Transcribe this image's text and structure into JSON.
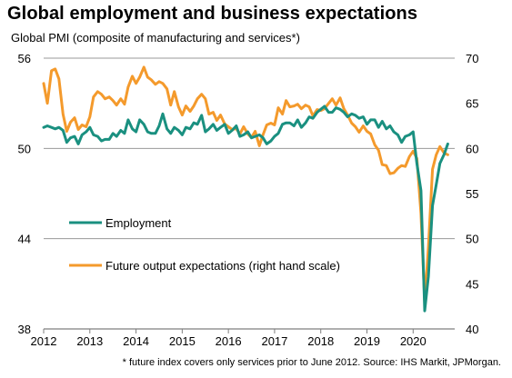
{
  "title": "Global employment and business expectations",
  "subtitle": "Global PMI (composite of manufacturing and services*)",
  "footnote": "* future index covers only services prior to June 2012. Source: IHS Markit, JPMorgan.",
  "chart_data": {
    "type": "line",
    "grid": "horizontal",
    "legend_position": "left, inside plot",
    "x_ticks": [
      "2012",
      "2013",
      "2014",
      "2015",
      "2016",
      "2017",
      "2018",
      "2019",
      "2020"
    ],
    "xlim": [
      2012.0,
      2020.9
    ],
    "y_left": {
      "ticks": [
        38,
        44,
        50,
        56
      ],
      "ylim": [
        38,
        56
      ]
    },
    "y_right": {
      "ticks": [
        40,
        45,
        50,
        55,
        60,
        65,
        70
      ],
      "ylim": [
        40,
        70
      ]
    },
    "series": [
      {
        "name": "Employment",
        "axis": "left",
        "color": "#1a9080",
        "x": [
          2012.0,
          2012.08,
          2012.17,
          2012.25,
          2012.33,
          2012.42,
          2012.5,
          2012.58,
          2012.67,
          2012.75,
          2012.83,
          2012.92,
          2013.0,
          2013.08,
          2013.17,
          2013.25,
          2013.33,
          2013.42,
          2013.5,
          2013.58,
          2013.67,
          2013.75,
          2013.83,
          2013.92,
          2014.0,
          2014.08,
          2014.17,
          2014.25,
          2014.33,
          2014.42,
          2014.5,
          2014.58,
          2014.67,
          2014.75,
          2014.83,
          2014.92,
          2015.0,
          2015.08,
          2015.17,
          2015.25,
          2015.33,
          2015.42,
          2015.5,
          2015.58,
          2015.67,
          2015.75,
          2015.83,
          2015.92,
          2016.0,
          2016.08,
          2016.17,
          2016.25,
          2016.33,
          2016.42,
          2016.5,
          2016.58,
          2016.67,
          2016.75,
          2016.83,
          2016.92,
          2017.0,
          2017.08,
          2017.17,
          2017.25,
          2017.33,
          2017.42,
          2017.5,
          2017.58,
          2017.67,
          2017.75,
          2017.83,
          2017.92,
          2018.0,
          2018.08,
          2018.17,
          2018.25,
          2018.33,
          2018.42,
          2018.5,
          2018.58,
          2018.67,
          2018.75,
          2018.83,
          2018.92,
          2019.0,
          2019.08,
          2019.17,
          2019.25,
          2019.33,
          2019.42,
          2019.5,
          2019.58,
          2019.67,
          2019.75,
          2019.83,
          2019.92,
          2020.0,
          2020.08,
          2020.17,
          2020.25,
          2020.33,
          2020.42,
          2020.5,
          2020.58,
          2020.67,
          2020.75
        ],
        "values": [
          51.4,
          51.5,
          51.4,
          51.3,
          51.4,
          51.2,
          50.4,
          50.7,
          50.8,
          50.3,
          50.9,
          51.1,
          51.4,
          50.9,
          50.8,
          50.5,
          50.6,
          50.6,
          51.0,
          50.8,
          51.2,
          51.0,
          51.9,
          51.3,
          51.1,
          51.9,
          51.6,
          51.1,
          51.0,
          51.0,
          51.5,
          52.3,
          51.3,
          51.0,
          51.4,
          51.2,
          50.9,
          51.4,
          51.3,
          51.7,
          51.6,
          52.2,
          51.1,
          51.3,
          51.6,
          51.2,
          51.4,
          51.6,
          51.0,
          51.2,
          51.5,
          50.8,
          50.9,
          51.1,
          50.7,
          50.8,
          50.9,
          50.7,
          50.3,
          50.5,
          50.8,
          51.0,
          51.6,
          51.7,
          51.7,
          51.5,
          51.9,
          51.4,
          51.7,
          52.1,
          52.0,
          52.4,
          52.6,
          52.8,
          52.4,
          52.4,
          52.7,
          52.6,
          52.4,
          52.1,
          52.3,
          52.2,
          52.0,
          52.1,
          51.6,
          51.9,
          51.9,
          51.4,
          51.8,
          51.3,
          51.5,
          51.1,
          50.9,
          50.4,
          50.8,
          50.9,
          51.1,
          49.0,
          47.2,
          39.2,
          41.5,
          46.2,
          47.6,
          49.0,
          49.6,
          50.3
        ]
      },
      {
        "name": "Future output expectations (right hand scale)",
        "axis": "right",
        "color": "#f49a2c",
        "x": [
          2012.0,
          2012.08,
          2012.17,
          2012.25,
          2012.33,
          2012.42,
          2012.5,
          2012.58,
          2012.67,
          2012.75,
          2012.83,
          2012.92,
          2013.0,
          2013.08,
          2013.17,
          2013.25,
          2013.33,
          2013.42,
          2013.5,
          2013.58,
          2013.67,
          2013.75,
          2013.83,
          2013.92,
          2014.0,
          2014.08,
          2014.17,
          2014.25,
          2014.33,
          2014.42,
          2014.5,
          2014.58,
          2014.67,
          2014.75,
          2014.83,
          2014.92,
          2015.0,
          2015.08,
          2015.17,
          2015.25,
          2015.33,
          2015.42,
          2015.5,
          2015.58,
          2015.67,
          2015.75,
          2015.83,
          2015.92,
          2016.0,
          2016.08,
          2016.17,
          2016.25,
          2016.33,
          2016.42,
          2016.5,
          2016.58,
          2016.67,
          2016.75,
          2016.83,
          2016.92,
          2017.0,
          2017.08,
          2017.17,
          2017.25,
          2017.33,
          2017.42,
          2017.5,
          2017.58,
          2017.67,
          2017.75,
          2017.83,
          2017.92,
          2018.0,
          2018.08,
          2018.17,
          2018.25,
          2018.33,
          2018.42,
          2018.5,
          2018.58,
          2018.67,
          2018.75,
          2018.83,
          2018.92,
          2019.0,
          2019.08,
          2019.17,
          2019.25,
          2019.33,
          2019.42,
          2019.5,
          2019.58,
          2019.67,
          2019.75,
          2019.83,
          2019.92,
          2020.0,
          2020.08,
          2020.17,
          2020.25,
          2020.33,
          2020.42,
          2020.5,
          2020.58,
          2020.67,
          2020.75
        ],
        "values": [
          67.2,
          65.0,
          68.6,
          68.8,
          67.7,
          63.8,
          61.9,
          62.9,
          63.4,
          62.1,
          62.6,
          62.4,
          63.5,
          65.7,
          66.3,
          66.0,
          65.5,
          65.7,
          65.3,
          64.8,
          65.5,
          64.9,
          66.8,
          68.0,
          67.2,
          67.9,
          69.0,
          67.9,
          67.6,
          67.1,
          67.4,
          67.2,
          66.6,
          64.8,
          66.3,
          64.6,
          63.7,
          64.7,
          64.1,
          64.7,
          65.5,
          66.0,
          65.5,
          63.8,
          64.0,
          63.1,
          63.7,
          62.7,
          62.4,
          62.1,
          62.2,
          61.6,
          62.4,
          61.6,
          61.2,
          61.9,
          60.3,
          61.5,
          62.6,
          62.8,
          62.6,
          64.5,
          63.8,
          65.3,
          64.6,
          64.7,
          64.9,
          64.4,
          64.8,
          64.6,
          63.6,
          64.3,
          64.2,
          64.4,
          65.0,
          65.5,
          64.8,
          65.6,
          64.4,
          63.7,
          62.8,
          62.4,
          61.8,
          62.5,
          61.9,
          61.6,
          60.4,
          59.8,
          58.2,
          58.1,
          57.2,
          57.3,
          57.8,
          58.1,
          58.0,
          59.1,
          59.7,
          58.9,
          52.8,
          43.0,
          49.1,
          57.7,
          59.3,
          60.2,
          59.5,
          59.3
        ]
      }
    ]
  }
}
